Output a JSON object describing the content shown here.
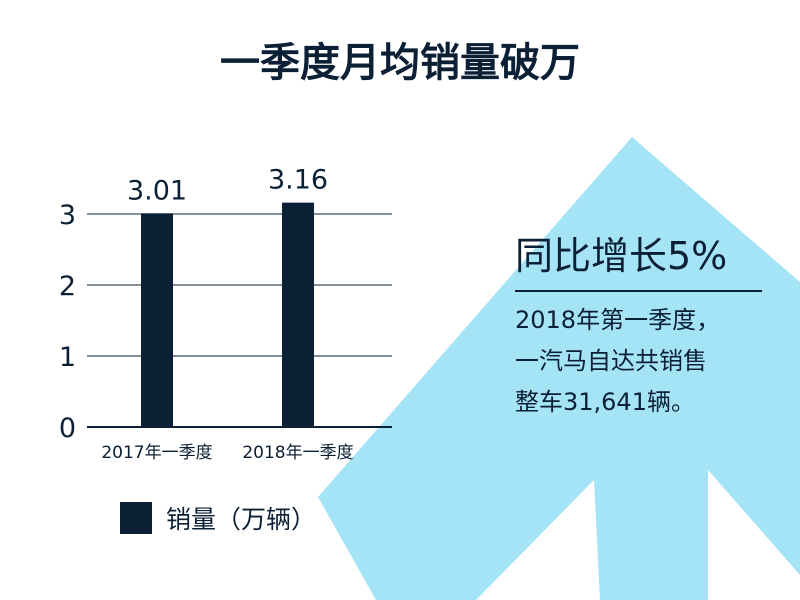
{
  "title": "一季度月均销量破万",
  "callout": {
    "headline": "同比增长5%",
    "lines": [
      "2018年第一季度，",
      "一汽马自达共销售",
      "整车31,641辆。"
    ]
  },
  "legend": {
    "label": "销量（万辆）"
  },
  "colors": {
    "bar": "#0b1f35",
    "arrow": "#a5e4f6",
    "text": "#0b1f35",
    "grid": "#0b1f35"
  },
  "chart_data": {
    "type": "bar",
    "categories": [
      "2017年一季度",
      "2018年一季度"
    ],
    "series": [
      {
        "name": "销量（万辆）",
        "values": [
          3.01,
          3.16
        ]
      }
    ],
    "data_labels": [
      "3.01",
      "3.16"
    ],
    "yticks": [
      0,
      1,
      2,
      3
    ],
    "ylim": [
      0,
      3.3
    ],
    "grid": true,
    "legend_position": "bottom-left"
  }
}
